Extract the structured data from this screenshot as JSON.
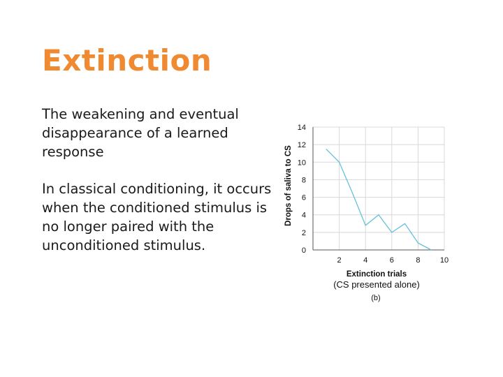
{
  "slide": {
    "title": "Extinction",
    "bullets": [
      "The weakening and eventual disappearance of a learned response",
      "In classical conditioning, it occurs when the conditioned stimulus is no longer paired with the unconditioned stimulus."
    ]
  },
  "chart_data": {
    "type": "line",
    "x": [
      1,
      2,
      3,
      4,
      5,
      6,
      7,
      8,
      9
    ],
    "values": [
      11.5,
      10,
      6.5,
      2.8,
      4,
      2,
      3,
      0.8,
      0
    ],
    "xticks": [
      2,
      4,
      6,
      8,
      10
    ],
    "yticks": [
      0,
      2,
      4,
      6,
      8,
      10,
      12,
      14
    ],
    "xlim": [
      0,
      10
    ],
    "ylim": [
      0,
      14
    ],
    "ylabel": "Drops of saliva to CS",
    "xlabel": "Extinction trials",
    "xlabel_sub": "(CS presented alone)",
    "panel_label": "(b)",
    "line_color": "#66c2d9",
    "grid": true
  }
}
